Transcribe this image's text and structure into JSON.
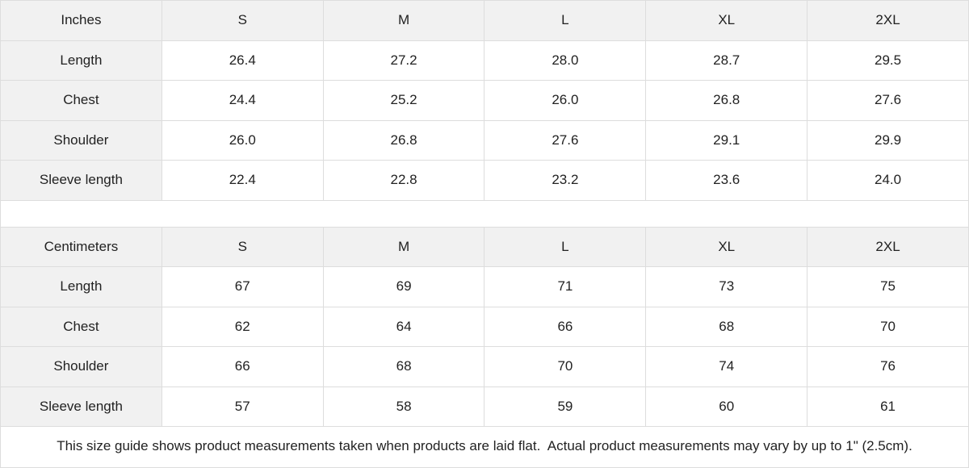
{
  "colors": {
    "header_bg": "#f1f1f1",
    "border": "#dddddd",
    "text": "#222222",
    "background": "#ffffff"
  },
  "tables": [
    {
      "unit_label": "Inches",
      "sizes": [
        "S",
        "M",
        "L",
        "XL",
        "2XL"
      ],
      "rows": [
        {
          "label": "Length",
          "values": [
            "26.4",
            "27.2",
            "28.0",
            "28.7",
            "29.5"
          ]
        },
        {
          "label": "Chest",
          "values": [
            "24.4",
            "25.2",
            "26.0",
            "26.8",
            "27.6"
          ]
        },
        {
          "label": "Shoulder",
          "values": [
            "26.0",
            "26.8",
            "27.6",
            "29.1",
            "29.9"
          ]
        },
        {
          "label": "Sleeve length",
          "values": [
            "22.4",
            "22.8",
            "23.2",
            "23.6",
            "24.0"
          ]
        }
      ]
    },
    {
      "unit_label": "Centimeters",
      "sizes": [
        "S",
        "M",
        "L",
        "XL",
        "2XL"
      ],
      "rows": [
        {
          "label": "Length",
          "values": [
            "67",
            "69",
            "71",
            "73",
            "75"
          ]
        },
        {
          "label": "Chest",
          "values": [
            "62",
            "64",
            "66",
            "68",
            "70"
          ]
        },
        {
          "label": "Shoulder",
          "values": [
            "66",
            "68",
            "70",
            "74",
            "76"
          ]
        },
        {
          "label": "Sleeve length",
          "values": [
            "57",
            "58",
            "59",
            "60",
            "61"
          ]
        }
      ]
    }
  ],
  "footer": {
    "note": "This size guide shows product measurements taken when products are laid flat.  Actual product measurements may vary by up to 1\" (2.5cm)."
  }
}
